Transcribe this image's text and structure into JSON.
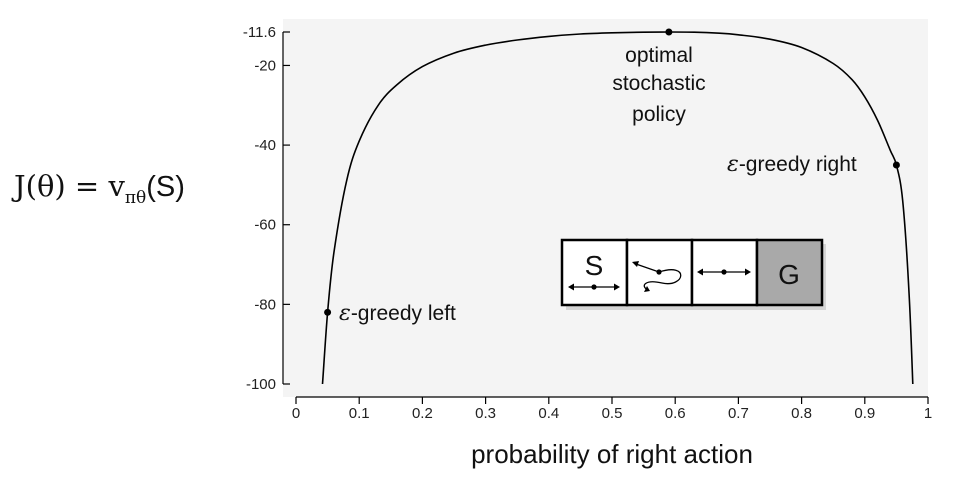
{
  "chart_data": {
    "type": "line",
    "xlabel": "probability of right action",
    "ylabel": {
      "lhs": "J(θ) = v",
      "sub": "πθ",
      "arg": "(S)"
    },
    "xlim": [
      0,
      1
    ],
    "ylim": [
      -100,
      -11.6
    ],
    "xticks": [
      "0",
      "0.1",
      "0.2",
      "0.3",
      "0.4",
      "0.5",
      "0.6",
      "0.7",
      "0.8",
      "0.9",
      "1"
    ],
    "yticks": [
      "-11.6",
      "-20",
      "-40",
      "-60",
      "-80",
      "-100"
    ],
    "series": [
      {
        "x": [
          0.042,
          0.05,
          0.06,
          0.08,
          0.1,
          0.13,
          0.16,
          0.2,
          0.25,
          0.3,
          0.35,
          0.4,
          0.45,
          0.5,
          0.55,
          0.59,
          0.63,
          0.67,
          0.7,
          0.75,
          0.8,
          0.85,
          0.88,
          0.9,
          0.92,
          0.94,
          0.95,
          0.96,
          0.97,
          0.976
        ],
        "y": [
          -100,
          -82,
          -67,
          -49,
          -39,
          -30,
          -24.8,
          -20.3,
          -16.9,
          -14.9,
          -13.6,
          -12.7,
          -12.1,
          -11.8,
          -11.65,
          -11.6,
          -11.65,
          -11.9,
          -12.3,
          -13.4,
          -15.5,
          -19.5,
          -23.6,
          -27.9,
          -33.7,
          -41.2,
          -45,
          -54,
          -77,
          -100
        ]
      }
    ],
    "points": [
      {
        "x": 0.05,
        "y": -82,
        "label_prefix": "ε",
        "label": "-greedy left"
      },
      {
        "x": 0.59,
        "y": -11.6,
        "label_lines": [
          "optimal",
          "stochastic",
          "policy"
        ]
      },
      {
        "x": 0.95,
        "y": -45,
        "label_prefix": "ε",
        "label": "-greedy right"
      }
    ]
  },
  "gridworld": {
    "cells": [
      {
        "label": "S",
        "color": "#ffffff"
      },
      {
        "label": "",
        "color": "#ffffff"
      },
      {
        "label": "",
        "color": "#ffffff"
      },
      {
        "label": "G",
        "color": "#a9a9a9"
      }
    ]
  }
}
